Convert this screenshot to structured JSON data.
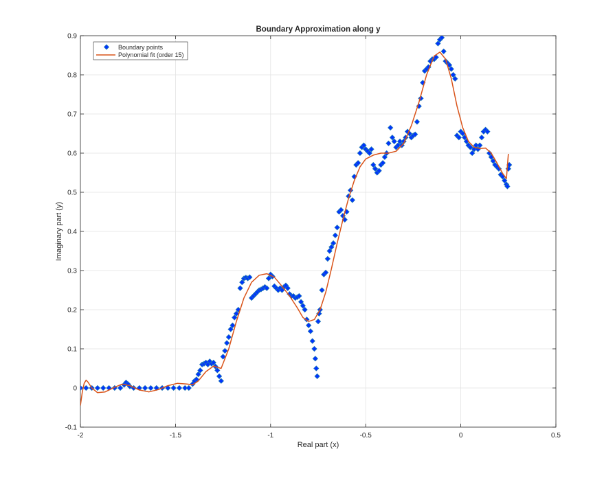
{
  "chart_data": {
    "type": "scatter",
    "title": "Boundary Approximation along y",
    "xlabel": "Real part (x)",
    "ylabel": "Imaginary part (y)",
    "xlim": [
      -2,
      0.5
    ],
    "ylim": [
      -0.1,
      0.9
    ],
    "xticks": [
      -2,
      -1.5,
      -1,
      -0.5,
      0,
      0.5
    ],
    "xtick_labels": [
      "-2",
      "-1.5",
      "-1",
      "-0.5",
      "0",
      "0.5"
    ],
    "yticks": [
      -0.1,
      0,
      0.1,
      0.2,
      0.3,
      0.4,
      0.5,
      0.6,
      0.7,
      0.8,
      0.9
    ],
    "ytick_labels": [
      "-0.1",
      "0",
      "0.1",
      "0.2",
      "0.3",
      "0.4",
      "0.5",
      "0.6",
      "0.7",
      "0.8",
      "0.9"
    ],
    "grid": true,
    "legend_position": "top-left",
    "series": [
      {
        "name": "Boundary points",
        "kind": "markers",
        "color": "#0033ff",
        "edge_color": "#1f77b4",
        "points": [
          [
            -2.0,
            0.0
          ],
          [
            -1.97,
            0.0
          ],
          [
            -1.94,
            0.0
          ],
          [
            -1.91,
            0.0
          ],
          [
            -1.88,
            0.0
          ],
          [
            -1.85,
            0.0
          ],
          [
            -1.82,
            0.0
          ],
          [
            -1.79,
            0.0
          ],
          [
            -1.77,
            0.008
          ],
          [
            -1.76,
            0.014
          ],
          [
            -1.75,
            0.01
          ],
          [
            -1.74,
            0.004
          ],
          [
            -1.72,
            0.0
          ],
          [
            -1.69,
            0.0
          ],
          [
            -1.66,
            0.0
          ],
          [
            -1.63,
            0.0
          ],
          [
            -1.6,
            0.0
          ],
          [
            -1.57,
            0.0
          ],
          [
            -1.54,
            0.0
          ],
          [
            -1.51,
            0.0
          ],
          [
            -1.48,
            0.0
          ],
          [
            -1.45,
            0.0
          ],
          [
            -1.43,
            0.0
          ],
          [
            -1.41,
            0.01
          ],
          [
            -1.4,
            0.018
          ],
          [
            -1.39,
            0.022
          ],
          [
            -1.38,
            0.035
          ],
          [
            -1.37,
            0.045
          ],
          [
            -1.36,
            0.06
          ],
          [
            -1.35,
            0.062
          ],
          [
            -1.34,
            0.065
          ],
          [
            -1.33,
            0.06
          ],
          [
            -1.32,
            0.068
          ],
          [
            -1.31,
            0.062
          ],
          [
            -1.3,
            0.065
          ],
          [
            -1.29,
            0.055
          ],
          [
            -1.28,
            0.045
          ],
          [
            -1.27,
            0.03
          ],
          [
            -1.26,
            0.018
          ],
          [
            -1.25,
            0.08
          ],
          [
            -1.24,
            0.095
          ],
          [
            -1.23,
            0.115
          ],
          [
            -1.22,
            0.13
          ],
          [
            -1.21,
            0.15
          ],
          [
            -1.2,
            0.16
          ],
          [
            -1.19,
            0.18
          ],
          [
            -1.18,
            0.19
          ],
          [
            -1.17,
            0.2
          ],
          [
            -1.16,
            0.255
          ],
          [
            -1.15,
            0.27
          ],
          [
            -1.14,
            0.28
          ],
          [
            -1.13,
            0.282
          ],
          [
            -1.12,
            0.28
          ],
          [
            -1.11,
            0.283
          ],
          [
            -1.1,
            0.23
          ],
          [
            -1.09,
            0.235
          ],
          [
            -1.08,
            0.24
          ],
          [
            -1.07,
            0.245
          ],
          [
            -1.06,
            0.25
          ],
          [
            -1.05,
            0.252
          ],
          [
            -1.04,
            0.255
          ],
          [
            -1.03,
            0.258
          ],
          [
            -1.02,
            0.255
          ],
          [
            -1.01,
            0.28
          ],
          [
            -1.0,
            0.29
          ],
          [
            -0.99,
            0.285
          ],
          [
            -0.98,
            0.26
          ],
          [
            -0.97,
            0.255
          ],
          [
            -0.96,
            0.25
          ],
          [
            -0.95,
            0.255
          ],
          [
            -0.94,
            0.25
          ],
          [
            -0.93,
            0.258
          ],
          [
            -0.92,
            0.262
          ],
          [
            -0.91,
            0.255
          ],
          [
            -0.9,
            0.24
          ],
          [
            -0.89,
            0.235
          ],
          [
            -0.88,
            0.235
          ],
          [
            -0.87,
            0.23
          ],
          [
            -0.86,
            0.232
          ],
          [
            -0.85,
            0.235
          ],
          [
            -0.84,
            0.22
          ],
          [
            -0.83,
            0.21
          ],
          [
            -0.82,
            0.2
          ],
          [
            -0.81,
            0.175
          ],
          [
            -0.8,
            0.16
          ],
          [
            -0.79,
            0.145
          ],
          [
            -0.78,
            0.12
          ],
          [
            -0.77,
            0.1
          ],
          [
            -0.765,
            0.075
          ],
          [
            -0.76,
            0.05
          ],
          [
            -0.755,
            0.03
          ],
          [
            -0.75,
            0.17
          ],
          [
            -0.745,
            0.19
          ],
          [
            -0.74,
            0.2
          ],
          [
            -0.73,
            0.25
          ],
          [
            -0.72,
            0.29
          ],
          [
            -0.71,
            0.295
          ],
          [
            -0.7,
            0.33
          ],
          [
            -0.69,
            0.35
          ],
          [
            -0.68,
            0.36
          ],
          [
            -0.67,
            0.37
          ],
          [
            -0.66,
            0.39
          ],
          [
            -0.65,
            0.41
          ],
          [
            -0.64,
            0.45
          ],
          [
            -0.63,
            0.455
          ],
          [
            -0.62,
            0.44
          ],
          [
            -0.61,
            0.43
          ],
          [
            -0.6,
            0.45
          ],
          [
            -0.59,
            0.49
          ],
          [
            -0.58,
            0.505
          ],
          [
            -0.57,
            0.48
          ],
          [
            -0.56,
            0.54
          ],
          [
            -0.55,
            0.57
          ],
          [
            -0.54,
            0.575
          ],
          [
            -0.53,
            0.6
          ],
          [
            -0.52,
            0.615
          ],
          [
            -0.51,
            0.62
          ],
          [
            -0.5,
            0.61
          ],
          [
            -0.49,
            0.605
          ],
          [
            -0.48,
            0.6
          ],
          [
            -0.47,
            0.61
          ],
          [
            -0.46,
            0.57
          ],
          [
            -0.45,
            0.56
          ],
          [
            -0.44,
            0.55
          ],
          [
            -0.43,
            0.555
          ],
          [
            -0.42,
            0.57
          ],
          [
            -0.41,
            0.575
          ],
          [
            -0.4,
            0.59
          ],
          [
            -0.39,
            0.6
          ],
          [
            -0.38,
            0.625
          ],
          [
            -0.37,
            0.665
          ],
          [
            -0.36,
            0.64
          ],
          [
            -0.35,
            0.63
          ],
          [
            -0.34,
            0.615
          ],
          [
            -0.33,
            0.62
          ],
          [
            -0.32,
            0.63
          ],
          [
            -0.31,
            0.62
          ],
          [
            -0.3,
            0.63
          ],
          [
            -0.29,
            0.64
          ],
          [
            -0.28,
            0.655
          ],
          [
            -0.27,
            0.65
          ],
          [
            -0.26,
            0.64
          ],
          [
            -0.25,
            0.645
          ],
          [
            -0.24,
            0.648
          ],
          [
            -0.23,
            0.68
          ],
          [
            -0.22,
            0.72
          ],
          [
            -0.21,
            0.74
          ],
          [
            -0.2,
            0.78
          ],
          [
            -0.19,
            0.81
          ],
          [
            -0.18,
            0.815
          ],
          [
            -0.17,
            0.82
          ],
          [
            -0.16,
            0.835
          ],
          [
            -0.15,
            0.84
          ],
          [
            -0.14,
            0.84
          ],
          [
            -0.13,
            0.845
          ],
          [
            -0.12,
            0.88
          ],
          [
            -0.11,
            0.89
          ],
          [
            -0.1,
            0.895
          ],
          [
            -0.09,
            0.86
          ],
          [
            -0.08,
            0.835
          ],
          [
            -0.07,
            0.83
          ],
          [
            -0.06,
            0.825
          ],
          [
            -0.05,
            0.815
          ],
          [
            -0.04,
            0.8
          ],
          [
            -0.03,
            0.79
          ],
          [
            -0.02,
            0.645
          ],
          [
            -0.01,
            0.64
          ],
          [
            0.0,
            0.655
          ],
          [
            0.01,
            0.65
          ],
          [
            0.02,
            0.64
          ],
          [
            0.03,
            0.63
          ],
          [
            0.04,
            0.62
          ],
          [
            0.05,
            0.615
          ],
          [
            0.06,
            0.6
          ],
          [
            0.07,
            0.61
          ],
          [
            0.08,
            0.62
          ],
          [
            0.09,
            0.61
          ],
          [
            0.1,
            0.62
          ],
          [
            0.11,
            0.64
          ],
          [
            0.12,
            0.655
          ],
          [
            0.13,
            0.66
          ],
          [
            0.14,
            0.655
          ],
          [
            0.15,
            0.6
          ],
          [
            0.16,
            0.59
          ],
          [
            0.17,
            0.58
          ],
          [
            0.18,
            0.57
          ],
          [
            0.19,
            0.565
          ],
          [
            0.2,
            0.56
          ],
          [
            0.21,
            0.545
          ],
          [
            0.22,
            0.54
          ],
          [
            0.23,
            0.53
          ],
          [
            0.24,
            0.52
          ],
          [
            0.245,
            0.515
          ],
          [
            0.25,
            0.56
          ],
          [
            0.255,
            0.57
          ]
        ]
      },
      {
        "name": "Polynomial fit (order 15)",
        "kind": "line",
        "color": "#d95319",
        "points": [
          [
            -2.0,
            -0.045
          ],
          [
            -1.99,
            -0.01
          ],
          [
            -1.98,
            0.012
          ],
          [
            -1.97,
            0.02
          ],
          [
            -1.96,
            0.015
          ],
          [
            -1.94,
            0.0
          ],
          [
            -1.91,
            -0.012
          ],
          [
            -1.87,
            -0.01
          ],
          [
            -1.82,
            0.002
          ],
          [
            -1.78,
            0.01
          ],
          [
            -1.74,
            0.006
          ],
          [
            -1.69,
            -0.005
          ],
          [
            -1.64,
            -0.01
          ],
          [
            -1.59,
            -0.004
          ],
          [
            -1.54,
            0.006
          ],
          [
            -1.49,
            0.012
          ],
          [
            -1.44,
            0.01
          ],
          [
            -1.41,
            0.008
          ],
          [
            -1.38,
            0.018
          ],
          [
            -1.34,
            0.042
          ],
          [
            -1.3,
            0.056
          ],
          [
            -1.26,
            0.05
          ],
          [
            -1.22,
            0.1
          ],
          [
            -1.18,
            0.17
          ],
          [
            -1.14,
            0.23
          ],
          [
            -1.1,
            0.27
          ],
          [
            -1.06,
            0.288
          ],
          [
            -1.02,
            0.292
          ],
          [
            -0.98,
            0.283
          ],
          [
            -0.94,
            0.26
          ],
          [
            -0.9,
            0.235
          ],
          [
            -0.86,
            0.205
          ],
          [
            -0.83,
            0.18
          ],
          [
            -0.8,
            0.17
          ],
          [
            -0.77,
            0.175
          ],
          [
            -0.74,
            0.2
          ],
          [
            -0.71,
            0.245
          ],
          [
            -0.68,
            0.305
          ],
          [
            -0.65,
            0.37
          ],
          [
            -0.62,
            0.43
          ],
          [
            -0.59,
            0.485
          ],
          [
            -0.56,
            0.53
          ],
          [
            -0.53,
            0.565
          ],
          [
            -0.5,
            0.585
          ],
          [
            -0.46,
            0.595
          ],
          [
            -0.42,
            0.6
          ],
          [
            -0.38,
            0.6
          ],
          [
            -0.34,
            0.605
          ],
          [
            -0.3,
            0.625
          ],
          [
            -0.26,
            0.67
          ],
          [
            -0.22,
            0.73
          ],
          [
            -0.18,
            0.8
          ],
          [
            -0.14,
            0.848
          ],
          [
            -0.11,
            0.858
          ],
          [
            -0.08,
            0.84
          ],
          [
            -0.05,
            0.79
          ],
          [
            -0.02,
            0.72
          ],
          [
            0.01,
            0.665
          ],
          [
            0.04,
            0.63
          ],
          [
            0.07,
            0.615
          ],
          [
            0.1,
            0.612
          ],
          [
            0.13,
            0.613
          ],
          [
            0.16,
            0.6
          ],
          [
            0.19,
            0.575
          ],
          [
            0.22,
            0.548
          ],
          [
            0.24,
            0.535
          ],
          [
            0.25,
            0.598
          ]
        ]
      }
    ]
  }
}
